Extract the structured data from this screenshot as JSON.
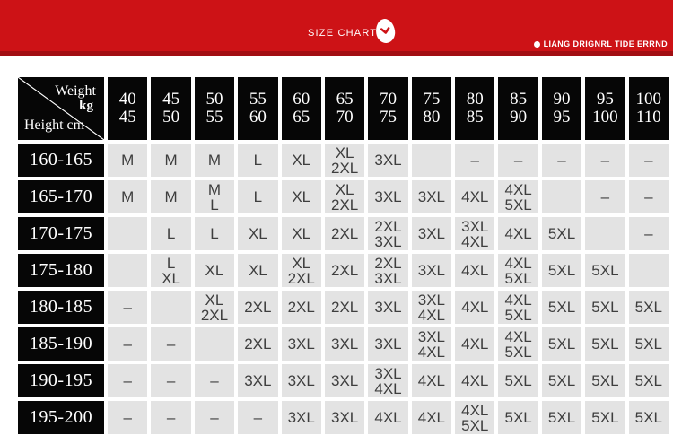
{
  "banner": {
    "title": "SIZE CHARTS",
    "brand": "LIANG DRIGNRL TIDE ERRND",
    "colors": {
      "red": "#cd1216",
      "red_dark": "#a20e12"
    }
  },
  "table": {
    "corner": {
      "top_label": "Weight",
      "top_unit": "kg",
      "bottom_label": "Height cm"
    },
    "weight_columns": [
      [
        "40",
        "45"
      ],
      [
        "45",
        "50"
      ],
      [
        "50",
        "55"
      ],
      [
        "55",
        "60"
      ],
      [
        "60",
        "65"
      ],
      [
        "65",
        "70"
      ],
      [
        "70",
        "75"
      ],
      [
        "75",
        "80"
      ],
      [
        "80",
        "85"
      ],
      [
        "85",
        "90"
      ],
      [
        "90",
        "95"
      ],
      [
        "95",
        "100"
      ],
      [
        "100",
        "110"
      ]
    ],
    "rows": [
      {
        "height": "160-165",
        "cells": [
          [
            "M"
          ],
          [
            "M"
          ],
          [
            "M"
          ],
          [
            "L"
          ],
          [
            "XL"
          ],
          [
            "XL",
            "2XL"
          ],
          [
            "3XL"
          ],
          [
            ""
          ],
          [
            "–"
          ],
          [
            "–"
          ],
          [
            "–"
          ],
          [
            "–"
          ],
          [
            "–"
          ]
        ]
      },
      {
        "height": "165-170",
        "cells": [
          [
            "M"
          ],
          [
            "M"
          ],
          [
            "M",
            "L"
          ],
          [
            "L"
          ],
          [
            "XL"
          ],
          [
            "XL",
            "2XL"
          ],
          [
            "3XL"
          ],
          [
            "3XL"
          ],
          [
            "4XL"
          ],
          [
            "4XL",
            "5XL"
          ],
          [
            ""
          ],
          [
            "–"
          ],
          [
            "–"
          ]
        ]
      },
      {
        "height": "170-175",
        "cells": [
          [
            ""
          ],
          [
            "L"
          ],
          [
            "L"
          ],
          [
            "XL"
          ],
          [
            "XL"
          ],
          [
            "2XL"
          ],
          [
            "2XL",
            "3XL"
          ],
          [
            "3XL"
          ],
          [
            "3XL",
            "4XL"
          ],
          [
            "4XL"
          ],
          [
            "5XL"
          ],
          [
            ""
          ],
          [
            "–"
          ]
        ]
      },
      {
        "height": "175-180",
        "cells": [
          [
            ""
          ],
          [
            "L",
            "XL"
          ],
          [
            "XL"
          ],
          [
            "XL"
          ],
          [
            "XL",
            "2XL"
          ],
          [
            "2XL"
          ],
          [
            "2XL",
            "3XL"
          ],
          [
            "3XL"
          ],
          [
            "4XL"
          ],
          [
            "4XL",
            "5XL"
          ],
          [
            "5XL"
          ],
          [
            "5XL"
          ],
          [
            ""
          ]
        ]
      },
      {
        "height": "180-185",
        "cells": [
          [
            "–"
          ],
          [
            ""
          ],
          [
            "XL",
            "2XL"
          ],
          [
            "2XL"
          ],
          [
            "2XL"
          ],
          [
            "2XL"
          ],
          [
            "3XL"
          ],
          [
            "3XL",
            "4XL"
          ],
          [
            "4XL"
          ],
          [
            "4XL",
            "5XL"
          ],
          [
            "5XL"
          ],
          [
            "5XL"
          ],
          [
            "5XL"
          ]
        ]
      },
      {
        "height": "185-190",
        "cells": [
          [
            "–"
          ],
          [
            "–"
          ],
          [
            ""
          ],
          [
            "2XL"
          ],
          [
            "3XL"
          ],
          [
            "3XL"
          ],
          [
            "3XL"
          ],
          [
            "3XL",
            "4XL"
          ],
          [
            "4XL"
          ],
          [
            "4XL",
            "5XL"
          ],
          [
            "5XL"
          ],
          [
            "5XL"
          ],
          [
            "5XL"
          ]
        ]
      },
      {
        "height": "190-195",
        "cells": [
          [
            "–"
          ],
          [
            "–"
          ],
          [
            "–"
          ],
          [
            "3XL"
          ],
          [
            "3XL"
          ],
          [
            "3XL"
          ],
          [
            "3XL",
            "4XL"
          ],
          [
            "4XL"
          ],
          [
            "4XL"
          ],
          [
            "5XL"
          ],
          [
            "5XL"
          ],
          [
            "5XL"
          ],
          [
            "5XL"
          ]
        ]
      },
      {
        "height": "195-200",
        "cells": [
          [
            "–"
          ],
          [
            "–"
          ],
          [
            "–"
          ],
          [
            "–"
          ],
          [
            "3XL"
          ],
          [
            "3XL"
          ],
          [
            "4XL"
          ],
          [
            "4XL"
          ],
          [
            "4XL",
            "5XL"
          ],
          [
            "5XL"
          ],
          [
            "5XL"
          ],
          [
            "5XL"
          ],
          [
            "5XL"
          ]
        ]
      }
    ]
  }
}
